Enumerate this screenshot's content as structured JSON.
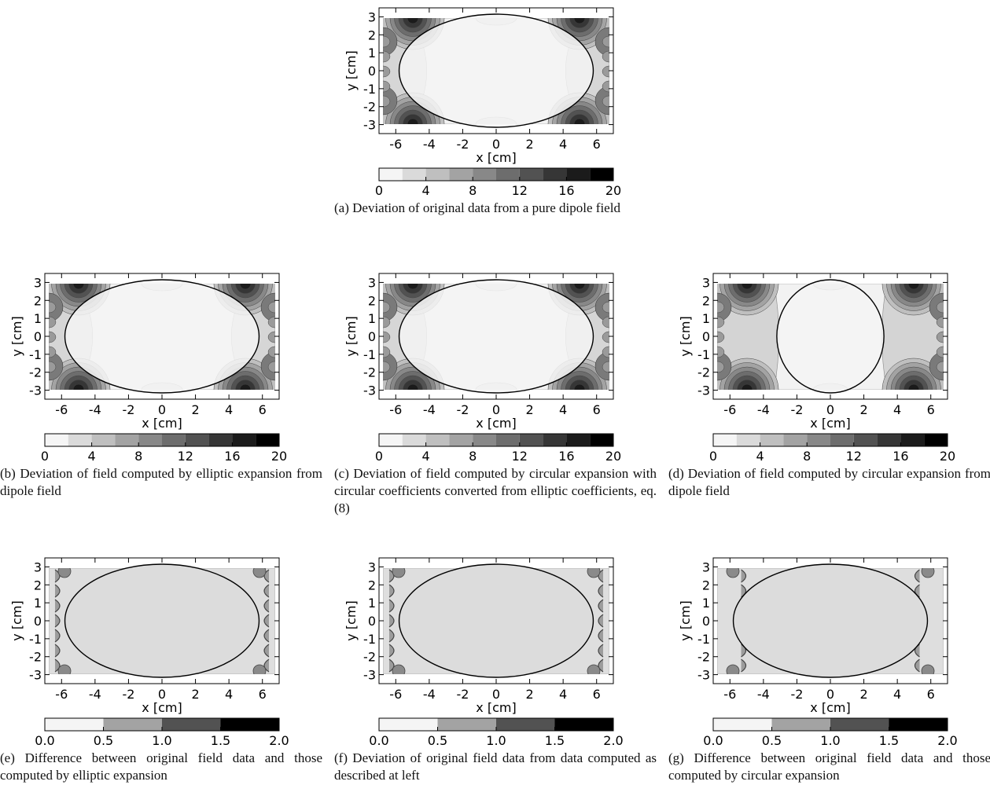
{
  "chart_data": [
    {
      "id": "a",
      "type": "heatmap",
      "xlabel": "x [cm]",
      "ylabel": "y [cm]",
      "xlim": [
        -7,
        7
      ],
      "ylim": [
        -3.5,
        3.5
      ],
      "xticks": [
        "-6",
        "-4",
        "-2",
        "0",
        "2",
        "4",
        "6"
      ],
      "yticks": [
        "3",
        "2",
        "1",
        "0",
        "-1",
        "-2",
        "-3"
      ],
      "boundary": {
        "shape": "ellipse",
        "a": 5.8,
        "b": 3.15
      },
      "colorbar": {
        "min": 0,
        "max": 20,
        "levels": 10,
        "ticks": [
          "0",
          "4",
          "8",
          "12",
          "16",
          "20"
        ]
      },
      "caption": "(a) Deviation of original data from a pure dipole field"
    },
    {
      "id": "b",
      "type": "heatmap",
      "xlabel": "x [cm]",
      "ylabel": "y [cm]",
      "xlim": [
        -7,
        7
      ],
      "ylim": [
        -3.5,
        3.5
      ],
      "xticks": [
        "-6",
        "-4",
        "-2",
        "0",
        "2",
        "4",
        "6"
      ],
      "yticks": [
        "3",
        "2",
        "1",
        "0",
        "-1",
        "-2",
        "-3"
      ],
      "boundary": {
        "shape": "ellipse",
        "a": 5.8,
        "b": 3.15
      },
      "colorbar": {
        "min": 0,
        "max": 20,
        "levels": 10,
        "ticks": [
          "0",
          "4",
          "8",
          "12",
          "16",
          "20"
        ]
      },
      "caption": "(b) Deviation of field computed by elliptic expansion from dipole field"
    },
    {
      "id": "c",
      "type": "heatmap",
      "xlabel": "x [cm]",
      "ylabel": "y [cm]",
      "xlim": [
        -7,
        7
      ],
      "ylim": [
        -3.5,
        3.5
      ],
      "xticks": [
        "-6",
        "-4",
        "-2",
        "0",
        "2",
        "4",
        "6"
      ],
      "yticks": [
        "3",
        "2",
        "1",
        "0",
        "-1",
        "-2",
        "-3"
      ],
      "boundary": {
        "shape": "ellipse",
        "a": 5.8,
        "b": 3.15
      },
      "colorbar": {
        "min": 0,
        "max": 20,
        "levels": 10,
        "ticks": [
          "0",
          "4",
          "8",
          "12",
          "16",
          "20"
        ]
      },
      "caption": "(c) Deviation of field computed by circular expansion with circular coefficients converted from elliptic coefficients, eq.(8)"
    },
    {
      "id": "d",
      "type": "heatmap",
      "xlabel": "x [cm]",
      "ylabel": "y [cm]",
      "xlim": [
        -7,
        7
      ],
      "ylim": [
        -3.5,
        3.5
      ],
      "xticks": [
        "-6",
        "-4",
        "-2",
        "0",
        "2",
        "4",
        "6"
      ],
      "yticks": [
        "3",
        "2",
        "1",
        "0",
        "-1",
        "-2",
        "-3"
      ],
      "boundary": {
        "shape": "circle",
        "a": 3.2,
        "b": 3.15
      },
      "colorbar": {
        "min": 0,
        "max": 20,
        "levels": 10,
        "ticks": [
          "0",
          "4",
          "8",
          "12",
          "16",
          "20"
        ]
      },
      "caption": "(d) Deviation of field computed by circular expansion from dipole field"
    },
    {
      "id": "e",
      "type": "heatmap",
      "xlabel": "x [cm]",
      "ylabel": "y [cm]",
      "xlim": [
        -7,
        7
      ],
      "ylim": [
        -3.5,
        3.5
      ],
      "xticks": [
        "-6",
        "-4",
        "-2",
        "0",
        "2",
        "4",
        "6"
      ],
      "yticks": [
        "3",
        "2",
        "1",
        "0",
        "-1",
        "-2",
        "-3"
      ],
      "boundary": {
        "shape": "ellipse",
        "a": 5.8,
        "b": 3.15
      },
      "colorbar": {
        "min": 0.0,
        "max": 2.0,
        "levels": 4,
        "ticks": [
          "0.0",
          "0.5",
          "1.0",
          "1.5",
          "2.0"
        ]
      },
      "caption": "(e) Difference between original field data and those computed by elliptic expansion"
    },
    {
      "id": "f",
      "type": "heatmap",
      "xlabel": "x [cm]",
      "ylabel": "y [cm]",
      "xlim": [
        -7,
        7
      ],
      "ylim": [
        -3.5,
        3.5
      ],
      "xticks": [
        "-6",
        "-4",
        "-2",
        "0",
        "2",
        "4",
        "6"
      ],
      "yticks": [
        "3",
        "2",
        "1",
        "0",
        "-1",
        "-2",
        "-3"
      ],
      "boundary": {
        "shape": "ellipse",
        "a": 5.8,
        "b": 3.15
      },
      "colorbar": {
        "min": 0.0,
        "max": 2.0,
        "levels": 4,
        "ticks": [
          "0.0",
          "0.5",
          "1.0",
          "1.5",
          "2.0"
        ]
      },
      "caption": "(f) Deviation of original field data from data computed as described at left"
    },
    {
      "id": "g",
      "type": "heatmap",
      "xlabel": "x [cm]",
      "ylabel": "y [cm]",
      "xlim": [
        -7,
        7
      ],
      "ylim": [
        -3.5,
        3.5
      ],
      "xticks": [
        "-6",
        "-4",
        "-2",
        "0",
        "2",
        "4",
        "6"
      ],
      "yticks": [
        "3",
        "2",
        "1",
        "0",
        "-1",
        "-2",
        "-3"
      ],
      "boundary": {
        "shape": "ellipse",
        "a": 5.8,
        "b": 3.15
      },
      "colorbar": {
        "min": 0.0,
        "max": 2.0,
        "levels": 4,
        "ticks": [
          "0.0",
          "0.5",
          "1.0",
          "1.5",
          "2.0"
        ]
      },
      "caption": "(g) Difference between original field data and those computed by circular expansion"
    }
  ]
}
